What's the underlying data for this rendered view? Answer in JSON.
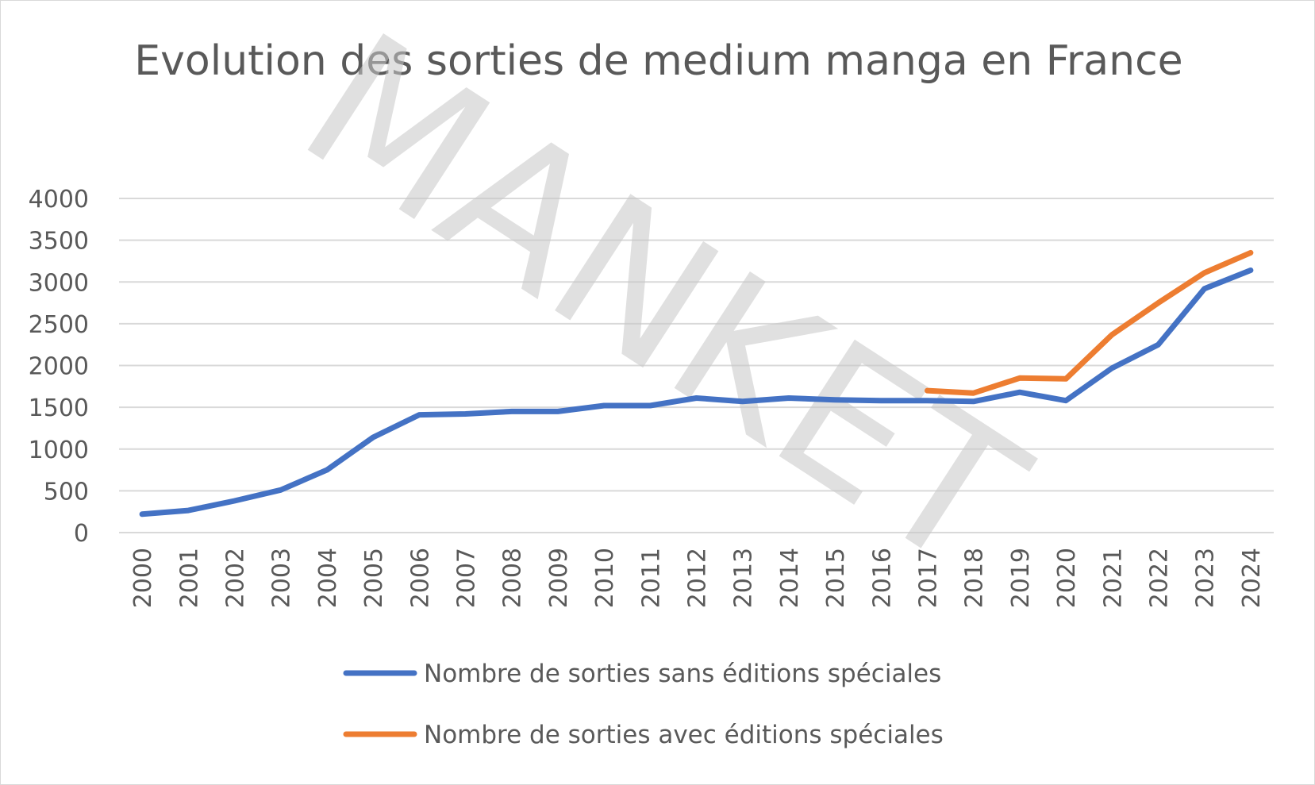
{
  "chart_data": {
    "type": "line",
    "title": "Evolution des sorties de medium manga en France",
    "xlabel": "",
    "ylabel": "",
    "ylim": [
      0,
      4000
    ],
    "y_ticks": [
      0,
      500,
      1000,
      1500,
      2000,
      2500,
      3000,
      3500,
      4000
    ],
    "y_tick_labels": [
      "0",
      "500",
      "1000",
      "1500",
      "2000",
      "2500",
      "3000",
      "3500",
      "4000"
    ],
    "grid": true,
    "legend_position": "bottom",
    "categories": [
      "2000",
      "2001",
      "2002",
      "2003",
      "2004",
      "2005",
      "2006",
      "2007",
      "2008",
      "2009",
      "2010",
      "2011",
      "2012",
      "2013",
      "2014",
      "2015",
      "2016",
      "2017",
      "2018",
      "2019",
      "2020",
      "2021",
      "2022",
      "2023",
      "2024"
    ],
    "series": [
      {
        "name": "Nombre de sorties sans éditions spéciales",
        "color": "#4472c4",
        "values": [
          220,
          265,
          380,
          510,
          750,
          1140,
          1410,
          1420,
          1450,
          1450,
          1520,
          1520,
          1610,
          1570,
          1610,
          1590,
          1580,
          1580,
          1570,
          1680,
          1580,
          1970,
          2250,
          2920,
          3140
        ]
      },
      {
        "name": "Nombre de sorties avec éditions spéciales",
        "color": "#ed7d31",
        "values": [
          null,
          null,
          null,
          null,
          null,
          null,
          null,
          null,
          null,
          null,
          null,
          null,
          null,
          null,
          null,
          null,
          null,
          1700,
          1670,
          1850,
          1840,
          2370,
          2750,
          3110,
          3350
        ]
      }
    ],
    "watermark": "MANKET"
  }
}
